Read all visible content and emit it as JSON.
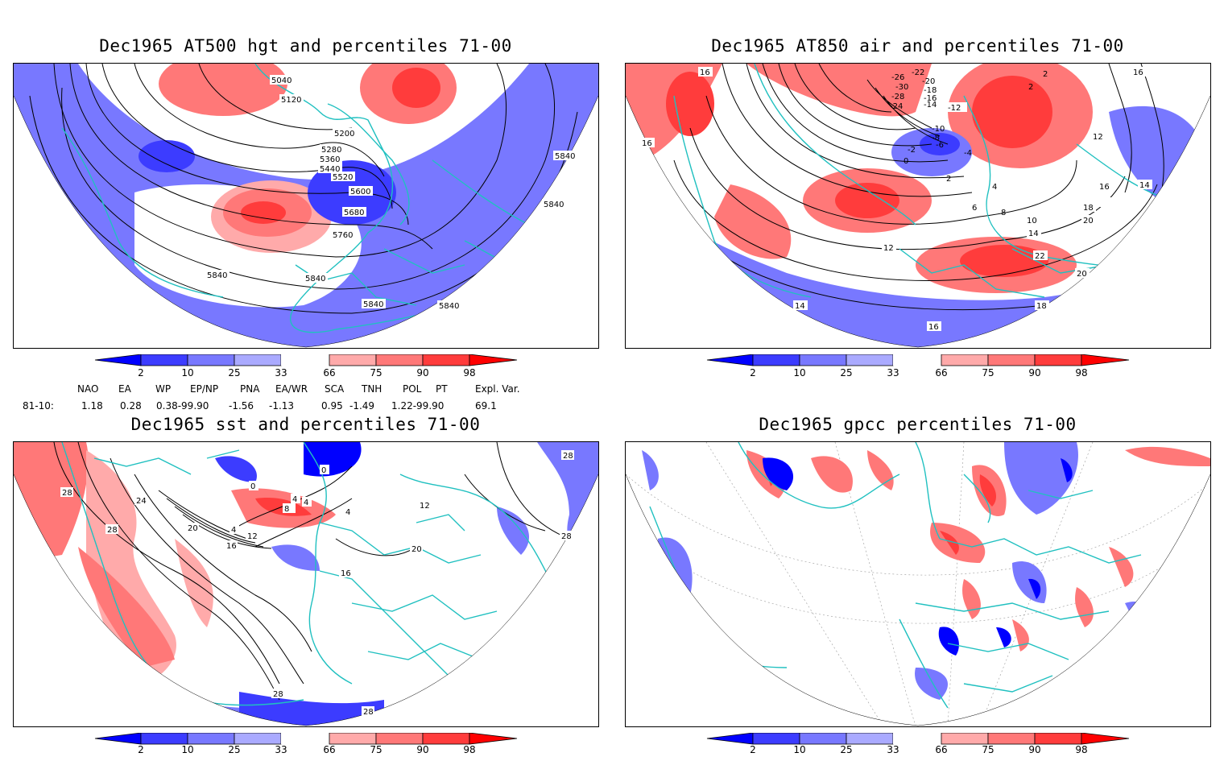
{
  "panels": [
    {
      "id": "tl",
      "title": "Dec1965 AT500 hgt and percentiles 71-00",
      "contour_labels": [
        "5040",
        "5120",
        "5200",
        "5280",
        "5360",
        "5440",
        "5520",
        "5600",
        "5680",
        "5760",
        "5840",
        "5840",
        "5840",
        "5840",
        "5840",
        "5840"
      ]
    },
    {
      "id": "tr",
      "title": "Dec1965 AT850 air and percentiles 71-00",
      "contour_labels": [
        "16",
        "-26",
        "-22",
        "-30",
        "-20",
        "-18",
        "-28",
        "-16",
        "-24",
        "-14",
        "-12",
        "-10",
        "-8",
        "-6",
        "-4",
        "-2",
        "0",
        "2",
        "2",
        "4",
        "6",
        "8",
        "10",
        "12",
        "12",
        "14",
        "14",
        "16",
        "16",
        "18",
        "20",
        "20",
        "22",
        "14",
        "18",
        "16",
        "16",
        "2"
      ]
    },
    {
      "id": "bl",
      "title": "Dec1965 sst and percentiles 71-00",
      "contour_labels": [
        "28",
        "28",
        "24",
        "20",
        "16",
        "12",
        "8",
        "4",
        "4",
        "0",
        "0",
        "4",
        "4",
        "12",
        "20",
        "16",
        "28",
        "28",
        "28",
        "28"
      ]
    },
    {
      "id": "br",
      "title": "Dec1965 gpcc percentiles 71-00",
      "contour_labels": []
    }
  ],
  "colorbar": {
    "ticks": [
      "2",
      "10",
      "25",
      "33",
      "66",
      "75",
      "90",
      "98"
    ],
    "colors": {
      "dark_blue": "#0000ff",
      "mid_blue": "#3c3cff",
      "light_blue": "#7878ff",
      "pale_blue": "#aaaaff",
      "pale_red": "#ffaaaa",
      "light_red": "#ff7878",
      "mid_red": "#ff3c3c",
      "dark_red": "#ff0000"
    }
  },
  "indices": {
    "header": [
      "NAO",
      "EA",
      "WP",
      "EP/NP",
      "PNA",
      "EA/WR",
      "SCA",
      "TNH",
      "POL",
      "PT",
      "Expl. Var."
    ],
    "row_label": "81-10:",
    "values": [
      "1.18",
      "0.28",
      "0.38-99.90",
      "-1.56",
      "-1.13",
      "0.95",
      "-1.49",
      "1.22-99.90",
      "69.1"
    ]
  },
  "colors": {
    "coast": "#20c0c0",
    "contour": "#000000"
  }
}
